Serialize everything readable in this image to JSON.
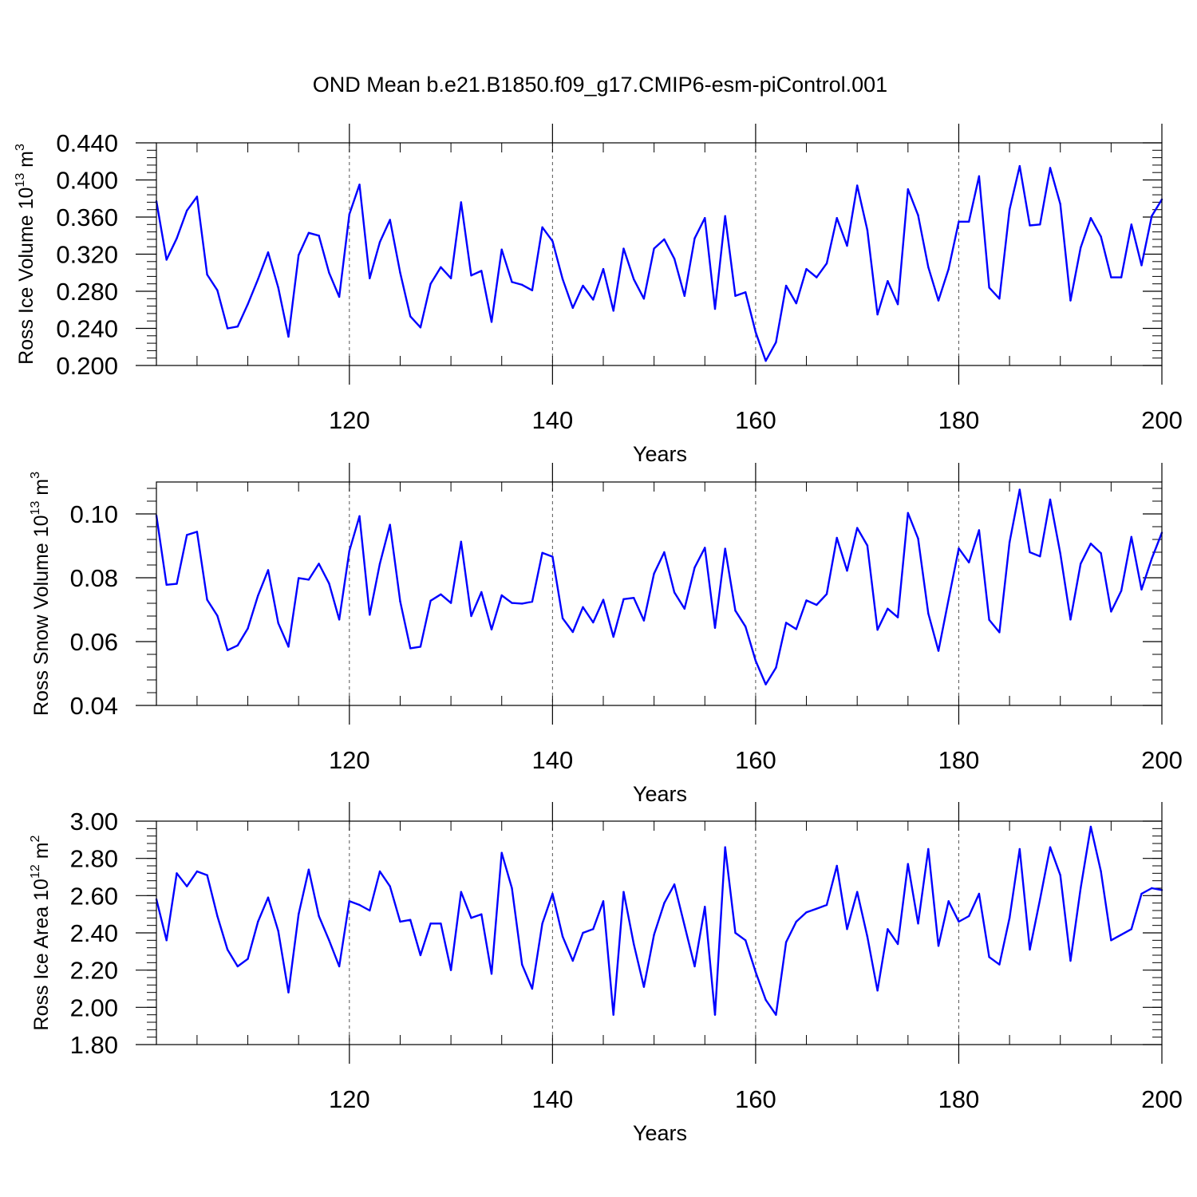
{
  "title": "OND Mean b.e21.B1850.f09_g17.CMIP6-esm-piControl.001",
  "colors": {
    "line": "#0000ff",
    "axis": "#000000",
    "grid": "#555555",
    "background": "#ffffff"
  },
  "chart_data": [
    {
      "type": "line",
      "ylabel_main": "Ross Ice Volume 10",
      "ylabel_exp": "13",
      "ylabel_unit": " m",
      "ylabel_unit_exp": "3",
      "xlabel": "Years",
      "xlim": [
        101,
        200
      ],
      "ylim": [
        0.2,
        0.44
      ],
      "xticks": [
        120,
        140,
        160,
        180,
        200
      ],
      "yticks": [
        "0.200",
        "0.240",
        "0.280",
        "0.320",
        "0.360",
        "0.400",
        "0.440"
      ],
      "ytick_values": [
        0.2,
        0.24,
        0.28,
        0.32,
        0.36,
        0.4,
        0.44
      ],
      "ygrid": false,
      "xgrid_dashed": [
        120,
        140,
        160,
        180
      ],
      "x_start": 101,
      "series": [
        {
          "name": "Ross Ice Volume",
          "values": [
            0.377,
            0.314,
            0.337,
            0.367,
            0.382,
            0.298,
            0.281,
            0.24,
            0.242,
            0.266,
            0.293,
            0.322,
            0.284,
            0.231,
            0.319,
            0.343,
            0.34,
            0.3,
            0.274,
            0.363,
            0.395,
            0.294,
            0.333,
            0.357,
            0.3,
            0.253,
            0.241,
            0.288,
            0.306,
            0.294,
            0.376,
            0.297,
            0.302,
            0.247,
            0.325,
            0.29,
            0.287,
            0.281,
            0.349,
            0.334,
            0.293,
            0.262,
            0.286,
            0.271,
            0.304,
            0.259,
            0.326,
            0.293,
            0.272,
            0.326,
            0.336,
            0.315,
            0.275,
            0.337,
            0.359,
            0.261,
            0.361,
            0.275,
            0.279,
            0.236,
            0.205,
            0.225,
            0.286,
            0.267,
            0.304,
            0.295,
            0.31,
            0.359,
            0.329,
            0.394,
            0.346,
            0.255,
            0.291,
            0.266,
            0.39,
            0.362,
            0.306,
            0.27,
            0.304,
            0.355,
            0.355,
            0.404,
            0.284,
            0.272,
            0.368,
            0.415,
            0.351,
            0.352,
            0.413,
            0.374,
            0.27,
            0.327,
            0.359,
            0.339,
            0.295,
            0.295,
            0.352,
            0.308,
            0.361,
            0.379
          ]
        }
      ]
    },
    {
      "type": "line",
      "ylabel_main": "Ross Snow Volume 10",
      "ylabel_exp": "13",
      "ylabel_unit": " m",
      "ylabel_unit_exp": "3",
      "xlabel": "Years",
      "xlim": [
        101,
        200
      ],
      "ylim": [
        0.04,
        0.11
      ],
      "xticks": [
        120,
        140,
        160,
        180,
        200
      ],
      "yticks": [
        "0.04",
        "0.06",
        "0.08",
        "0.10"
      ],
      "ytick_values": [
        0.04,
        0.06,
        0.08,
        0.1
      ],
      "ygrid": false,
      "xgrid_dashed": [
        120,
        140,
        160,
        180
      ],
      "x_start": 101,
      "series": [
        {
          "name": "Ross Snow Volume",
          "values": [
            0.0995,
            0.0778,
            0.0781,
            0.0934,
            0.0944,
            0.0731,
            0.0681,
            0.0573,
            0.0588,
            0.0641,
            0.0744,
            0.0824,
            0.0658,
            0.0584,
            0.0799,
            0.0794,
            0.0844,
            0.0782,
            0.0669,
            0.0884,
            0.0993,
            0.0684,
            0.0844,
            0.0966,
            0.0726,
            0.0579,
            0.0584,
            0.0728,
            0.0748,
            0.0721,
            0.0913,
            0.068,
            0.0755,
            0.0638,
            0.0745,
            0.0721,
            0.0719,
            0.0725,
            0.0878,
            0.0866,
            0.0673,
            0.063,
            0.0708,
            0.066,
            0.0731,
            0.0615,
            0.0733,
            0.0737,
            0.0666,
            0.0813,
            0.088,
            0.0754,
            0.0703,
            0.0832,
            0.0894,
            0.0643,
            0.0891,
            0.0697,
            0.0647,
            0.054,
            0.0466,
            0.0518,
            0.0659,
            0.0639,
            0.0729,
            0.0715,
            0.0749,
            0.0925,
            0.0822,
            0.0956,
            0.0901,
            0.0637,
            0.0703,
            0.0676,
            0.1003,
            0.0923,
            0.0688,
            0.0571,
            0.0732,
            0.0892,
            0.0848,
            0.0949,
            0.0668,
            0.0629,
            0.0911,
            0.1076,
            0.088,
            0.0867,
            0.1045,
            0.0876,
            0.0669,
            0.0844,
            0.0907,
            0.0877,
            0.0694,
            0.0759,
            0.0928,
            0.0763,
            0.086,
            0.0941
          ]
        }
      ]
    },
    {
      "type": "line",
      "ylabel_main": "Ross Ice Area 10",
      "ylabel_exp": "12",
      "ylabel_unit": " m",
      "ylabel_unit_exp": "2",
      "xlabel": "Years",
      "xlim": [
        101,
        200
      ],
      "ylim": [
        1.8,
        3.0
      ],
      "xticks": [
        120,
        140,
        160,
        180,
        200
      ],
      "yticks": [
        "1.80",
        "2.00",
        "2.20",
        "2.40",
        "2.60",
        "2.80",
        "3.00"
      ],
      "ytick_values": [
        1.8,
        2.0,
        2.2,
        2.4,
        2.6,
        2.8,
        3.0
      ],
      "ygrid": false,
      "xgrid_dashed": [
        120,
        140,
        160,
        180
      ],
      "x_start": 101,
      "series": [
        {
          "name": "Ross Ice Area",
          "values": [
            2.58,
            2.36,
            2.72,
            2.65,
            2.73,
            2.71,
            2.49,
            2.31,
            2.22,
            2.26,
            2.46,
            2.59,
            2.41,
            2.08,
            2.5,
            2.74,
            2.49,
            2.36,
            2.22,
            2.57,
            2.55,
            2.52,
            2.73,
            2.65,
            2.46,
            2.47,
            2.28,
            2.45,
            2.45,
            2.2,
            2.62,
            2.48,
            2.5,
            2.18,
            2.83,
            2.64,
            2.23,
            2.1,
            2.45,
            2.61,
            2.38,
            2.25,
            2.4,
            2.42,
            2.57,
            1.96,
            2.62,
            2.34,
            2.11,
            2.39,
            2.56,
            2.66,
            2.44,
            2.22,
            2.54,
            1.96,
            2.86,
            2.4,
            2.36,
            2.19,
            2.04,
            1.96,
            2.35,
            2.46,
            2.51,
            2.53,
            2.55,
            2.76,
            2.42,
            2.62,
            2.38,
            2.09,
            2.42,
            2.34,
            2.77,
            2.45,
            2.85,
            2.33,
            2.57,
            2.46,
            2.49,
            2.61,
            2.27,
            2.23,
            2.48,
            2.85,
            2.31,
            2.58,
            2.86,
            2.71,
            2.25,
            2.64,
            2.97,
            2.73,
            2.36,
            2.39,
            2.42,
            2.61,
            2.64,
            2.63
          ]
        }
      ]
    }
  ]
}
